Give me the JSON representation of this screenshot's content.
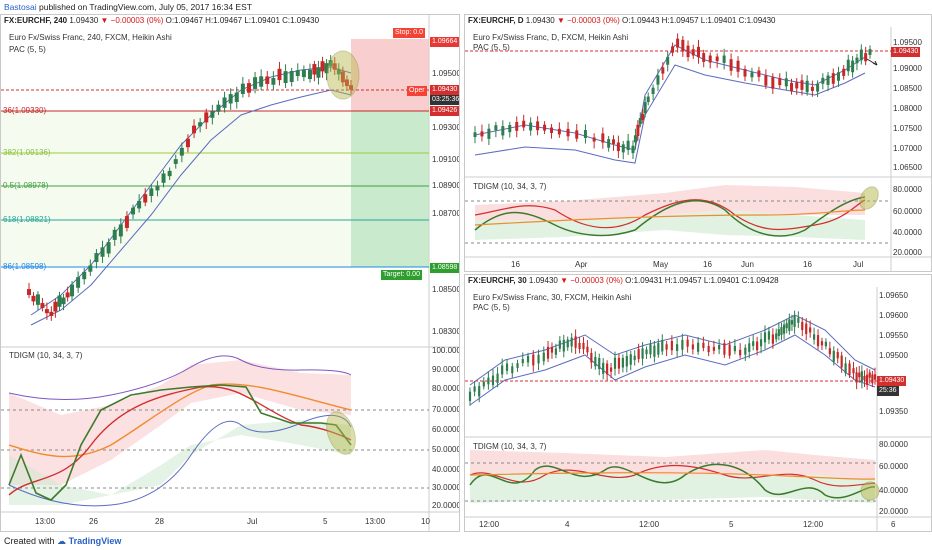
{
  "header": {
    "author": "Bastosai",
    "published": "published on TradingView.com, July 05, 2017 16:34 EST"
  },
  "left": {
    "symbol": "FX:EURCHF, 240",
    "price": "1.09430",
    "change": "▼ −0.00003 (0%)",
    "ohlc": "O:1.09467 H:1.09467 L:1.09401 C:1.09430",
    "instrument": "Euro Fx/Swiss Franc, 240, FXCM, Heikin Ashi",
    "pac": "PAC (5, 5)",
    "stop_tag": "Stop: 0.0",
    "open_tag": "Oper",
    "target_tag": "Target: 0.00",
    "prices": [
      "1.09664",
      "1.09500",
      "1.09430",
      "03:25:36",
      "1.09426",
      "1.09300",
      "1.09100",
      "1.08900",
      "1.08700",
      "1.08598",
      "1.08500",
      "1.08300"
    ],
    "fib": [
      "36(1.09330)",
      "382(1.09136)",
      "0.5(1.08978)",
      "618(1.08821)",
      "86(1.08598)"
    ],
    "dates": [
      "13:00",
      "26",
      "28",
      "Jul",
      "5",
      "13:00",
      "10"
    ],
    "indicator": "TDIGM (10, 34, 3, 7)",
    "ind_axis": [
      "100.0000",
      "90.0000",
      "80.0000",
      "70.0000",
      "60.0000",
      "50.0000",
      "40.0000",
      "30.0000",
      "20.0000"
    ]
  },
  "topright": {
    "symbol": "FX:EURCHF, D",
    "price": "1.09430",
    "change": "▼ −0.00003 (0%)",
    "ohlc": "O:1.09443 H:1.09457 L:1.09401 C:1.09430",
    "instrument": "Euro Fx/Swiss Franc, D, FXCM, Heikin Ashi",
    "pac": "PAC (5, 5)",
    "prices": [
      "1.09500",
      "1.09430",
      "1.09000",
      "1.08500",
      "1.08000",
      "1.07500",
      "1.07000",
      "1.06500"
    ],
    "indicator": "TDIGM (10, 34, 3, 7)",
    "ind_axis": [
      "80.0000",
      "60.0000",
      "40.0000",
      "20.0000"
    ],
    "dates": [
      "16",
      "Apr",
      "May",
      "16",
      "Jun",
      "16",
      "Jul"
    ]
  },
  "bottomright": {
    "symbol": "FX:EURCHF, 30",
    "price": "1.09430",
    "change": "▼ −0.00003 (0%)",
    "ohlc": "O:1.09431 H:1.09457 L:1.09401 C:1.09428",
    "instrument": "Euro Fx/Swiss Franc, 30, FXCM, Heikin Ashi",
    "pac": "PAC (5, 5)",
    "prices": [
      "1.09650",
      "1.09600",
      "1.09550",
      "1.09500",
      "1.09430",
      "25:36",
      "1.09350"
    ],
    "indicator": "TDIGM (10, 34, 3, 7)",
    "ind_axis": [
      "80.0000",
      "60.0000",
      "40.0000",
      "20.0000"
    ],
    "dates": [
      "12:00",
      "4",
      "12:00",
      "5",
      "12:00",
      "6"
    ]
  },
  "footer": {
    "created": "Created with",
    "brand": "TradingView"
  },
  "colors": {
    "bull": "#2e7d4f",
    "bear": "#c62828",
    "pac": "#5c6bc0",
    "stop": "#f44336",
    "target": "#2e9e2e"
  }
}
